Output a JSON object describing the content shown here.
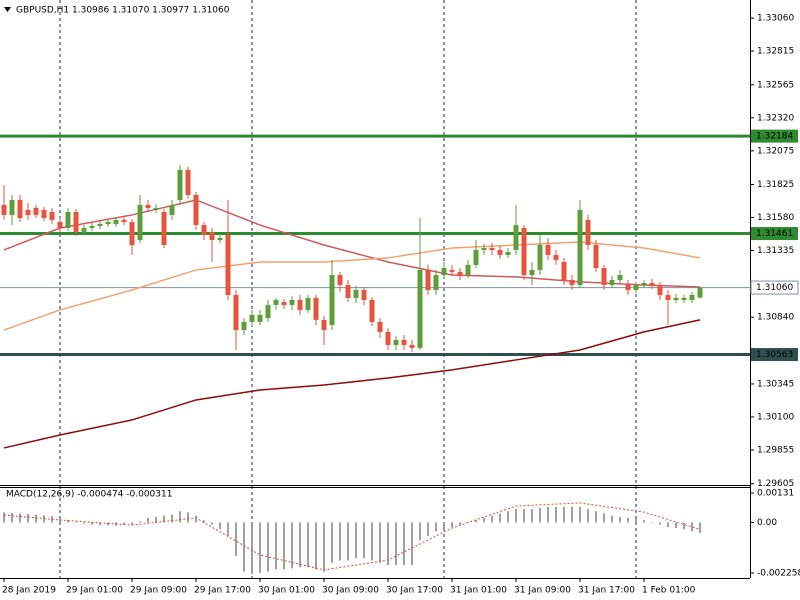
{
  "chart_data": [
    {
      "type": "candlestick",
      "title": "GBPUSD,H1 1.30986 1.31070 1.30977 1.31060",
      "categories": [
        "28 Jan 2019",
        null,
        null,
        null,
        null,
        null,
        null,
        null,
        "29 Jan 01:00",
        null,
        null,
        null,
        null,
        null,
        null,
        null,
        "29 Jan 09:00",
        null,
        null,
        null,
        null,
        null,
        null,
        null,
        "29 Jan 17:00",
        null,
        null,
        null,
        null,
        null,
        null,
        null,
        "30 Jan 01:00",
        null,
        null,
        null,
        null,
        null,
        null,
        null,
        "30 Jan 09:00",
        null,
        null,
        null,
        null,
        null,
        null,
        null,
        "30 Jan 17:00",
        null,
        null,
        null,
        null,
        null,
        null,
        null,
        "31 Jan 01:00",
        null,
        null,
        null,
        null,
        null,
        null,
        null,
        "31 Jan 09:00",
        null,
        null,
        null,
        null,
        null,
        null,
        null,
        "31 Jan 17:00",
        null,
        null,
        null,
        null,
        null,
        null,
        null,
        "1 Feb 01:00",
        null,
        null,
        null,
        null,
        null,
        null,
        null
      ],
      "open": [
        1.31673,
        1.31599,
        1.3171,
        1.31636,
        1.31651,
        1.31636,
        1.31621,
        1.31547,
        1.31502,
        1.31621,
        1.31473,
        1.31502,
        1.31517,
        1.31532,
        1.31532,
        1.31562,
        1.31547,
        1.31413,
        1.31673,
        1.31636,
        1.31621,
        1.31599,
        1.3171,
        1.31933,
        1.31747,
        1.31524,
        1.31473,
        1.31413,
        1.3145,
        1.31005,
        1.30745,
        1.30805,
        1.30805,
        1.30834,
        1.30931,
        1.30953,
        1.30931,
        1.30968,
        1.30894,
        1.30983,
        1.3082,
        1.30782,
        1.31153,
        1.31079,
        1.30983,
        1.31042,
        1.30968,
        1.30805,
        1.30731,
        1.30634,
        1.30671,
        1.30634,
        1.30612,
        1.31191,
        1.31042,
        1.31153,
        1.31191,
        1.31176,
        1.31153,
        1.31228,
        1.31339,
        1.31354,
        1.31339,
        1.31302,
        1.31339,
        1.31502,
        1.31153,
        1.31191,
        1.31376,
        1.31302,
        1.3125,
        1.31116,
        1.31079,
        1.31562,
        1.31376,
        1.31205,
        1.31079,
        1.31116,
        1.31079,
        1.31042,
        1.31079,
        1.31094,
        1.31079,
        1.31005,
        1.30968,
        1.30968,
        1.30968,
        1.30986
      ],
      "high": [
        1.31821,
        1.31747,
        1.31747,
        1.31688,
        1.31673,
        1.31658,
        1.31651,
        1.31576,
        1.31651,
        1.31643,
        1.31524,
        1.31539,
        1.31554,
        1.31569,
        1.31584,
        1.31591,
        1.31569,
        1.31747,
        1.3171,
        1.3168,
        1.31643,
        1.3171,
        1.3197,
        1.31955,
        1.31769,
        1.31547,
        1.31502,
        1.31458,
        1.3171,
        1.31042,
        1.30834,
        1.30894,
        1.30894,
        1.30968,
        1.30983,
        1.30975,
        1.30998,
        1.31005,
        1.31005,
        1.31005,
        1.30849,
        1.31265,
        1.31176,
        1.31116,
        1.31072,
        1.31064,
        1.3099,
        1.30834,
        1.3076,
        1.30701,
        1.30708,
        1.30671,
        1.31576,
        1.31228,
        1.31191,
        1.3125,
        1.31228,
        1.31205,
        1.31265,
        1.31413,
        1.31384,
        1.31391,
        1.31369,
        1.31354,
        1.31673,
        1.31524,
        1.3125,
        1.3145,
        1.31428,
        1.31339,
        1.3128,
        1.31153,
        1.3171,
        1.31599,
        1.31413,
        1.31228,
        1.31146,
        1.31191,
        1.31116,
        1.31102,
        1.31116,
        1.31124,
        1.31102,
        1.31042,
        1.31013,
        1.31005,
        1.31027,
        1.3107
      ],
      "low": [
        1.31562,
        1.31524,
        1.31547,
        1.31562,
        1.31576,
        1.31554,
        1.31532,
        1.31473,
        1.3148,
        1.31443,
        1.3145,
        1.3148,
        1.31495,
        1.3151,
        1.3151,
        1.31524,
        1.31302,
        1.31391,
        1.31621,
        1.31614,
        1.31354,
        1.31562,
        1.31673,
        1.31717,
        1.31487,
        1.31413,
        1.3125,
        1.31391,
        1.30968,
        1.30597,
        1.30708,
        1.30775,
        1.30782,
        1.30805,
        1.30894,
        1.30901,
        1.30894,
        1.30857,
        1.30872,
        1.30782,
        1.30634,
        1.30745,
        1.31027,
        1.30953,
        1.30946,
        1.30931,
        1.30775,
        1.30686,
        1.30597,
        1.30597,
        1.30597,
        1.30582,
        1.30597,
        1.31005,
        1.31005,
        1.31131,
        1.31146,
        1.31116,
        1.31131,
        1.31205,
        1.31302,
        1.31302,
        1.31272,
        1.3128,
        1.31302,
        1.31116,
        1.31079,
        1.31153,
        1.31265,
        1.31228,
        1.31079,
        1.31042,
        1.31057,
        1.31339,
        1.31176,
        1.31042,
        1.31057,
        1.31094,
        1.31005,
        1.3102,
        1.31057,
        1.3105,
        1.30968,
        1.30782,
        1.30946,
        1.30946,
        1.30946,
        1.30977
      ],
      "close": [
        1.31599,
        1.3171,
        1.31576,
        1.31599,
        1.31599,
        1.31576,
        1.31562,
        1.31502,
        1.31621,
        1.31473,
        1.31502,
        1.31517,
        1.31532,
        1.31547,
        1.31562,
        1.31547,
        1.31376,
        1.31673,
        1.31651,
        1.31651,
        1.31376,
        1.31673,
        1.31933,
        1.31747,
        1.31524,
        1.3145,
        1.31413,
        1.31428,
        1.31005,
        1.30745,
        1.30805,
        1.30857,
        1.30857,
        1.30931,
        1.30968,
        1.30931,
        1.30968,
        1.30894,
        1.30983,
        1.3082,
        1.30745,
        1.31153,
        1.31079,
        1.30983,
        1.31042,
        1.30968,
        1.30805,
        1.30731,
        1.30634,
        1.30671,
        1.30634,
        1.30612,
        1.31191,
        1.31042,
        1.31153,
        1.31205,
        1.31176,
        1.31153,
        1.31228,
        1.31339,
        1.31354,
        1.31339,
        1.31302,
        1.31324,
        1.31524,
        1.31153,
        1.31191,
        1.31376,
        1.31302,
        1.31265,
        1.31116,
        1.31079,
        1.31636,
        1.31376,
        1.31205,
        1.31079,
        1.31116,
        1.31153,
        1.31042,
        1.31079,
        1.31094,
        1.31079,
        1.31005,
        1.30968,
        1.30983,
        1.30983,
        1.31005,
        1.3106
      ],
      "up_color": "#5e9e3a",
      "down_color": "#e8533f",
      "series": [
        {
          "color": "#d05a5a",
          "x": [
            0,
            7,
            16,
            24,
            32,
            40,
            48,
            56,
            64,
            72,
            80,
            87
          ],
          "values": [
            1.31339,
            1.31502,
            1.31599,
            1.3171,
            1.31524,
            1.31376,
            1.3125,
            1.31153,
            1.31139,
            1.31102,
            1.31079,
            1.31064
          ]
        },
        {
          "color": "#f4a070",
          "x": [
            0,
            7,
            16,
            24,
            32,
            40,
            48,
            56,
            64,
            72,
            80,
            87
          ],
          "values": [
            1.30745,
            1.30894,
            1.31042,
            1.31191,
            1.3125,
            1.3125,
            1.3128,
            1.31354,
            1.31376,
            1.31398,
            1.31354,
            1.3128
          ]
        },
        {
          "color": "#8b0a0a",
          "x": [
            0,
            7,
            16,
            24,
            32,
            40,
            48,
            56,
            64,
            72,
            80,
            87
          ],
          "values": [
            1.2987,
            1.29966,
            1.30078,
            1.30226,
            1.303,
            1.30337,
            1.30389,
            1.30449,
            1.30523,
            1.30597,
            1.30731,
            1.3082
          ]
        }
      ],
      "levels": [
        {
          "value": 1.32184,
          "color": "#2e8b2e"
        },
        {
          "value": 1.31461,
          "color": "#2e8b2e"
        },
        {
          "value": 1.30563,
          "color": "#2f4f4f"
        }
      ],
      "last": {
        "value": 1.3106,
        "label": "1.31060",
        "color": "#7f8fa6"
      },
      "ylim": [
        1.29595,
        1.33194
      ],
      "yticks": [
        {
          "value": 1.3306,
          "label": "1.33060"
        },
        1.32815,
        1.32565,
        {
          "value": 1.3232,
          "label": "1.32320"
        },
        1.32075,
        1.31825,
        {
          "value": 1.3158,
          "label": "1.31580"
        },
        1.31335,
        {
          "value": 1.3084,
          "label": "1.30840"
        },
        1.30345,
        {
          "value": 1.301,
          "label": "1.30100"
        },
        1.29855,
        1.29605
      ]
    },
    {
      "type": "bar",
      "title": "MACD(12,26,9) -0.000474 -0.000311",
      "values": [
        0.00045,
        0.00042,
        0.0004,
        0.00038,
        0.00035,
        0.00032,
        0.00028,
        0.0002,
        0.0001,
        5e-05,
        -5e-05,
        -0.0001,
        -0.00012,
        -0.00014,
        -0.00015,
        -0.00012,
        -0.0001,
        5e-05,
        0.0002,
        0.00025,
        0.0003,
        0.00035,
        0.0005,
        0.00045,
        0.0003,
        0.0001,
        -0.0001,
        -0.0003,
        -0.0006,
        -0.0015,
        -0.0022,
        -0.0023,
        -0.00225,
        -0.0022,
        -0.0021,
        -0.0021,
        -0.00205,
        -0.002,
        -0.002,
        -0.0021,
        -0.0022,
        -0.0018,
        -0.0017,
        -0.0017,
        -0.0016,
        -0.0016,
        -0.0017,
        -0.0018,
        -0.0019,
        -0.0019,
        -0.0019,
        -0.0019,
        -0.0008,
        -0.0006,
        -0.0004,
        -0.0003,
        -0.0002,
        -0.0001,
        0,
        0.0001,
        0.0002,
        0.0003,
        0.0004,
        0.0005,
        0.0006,
        0.0006,
        0.0006,
        0.00065,
        0.0007,
        0.0007,
        0.0007,
        0.0007,
        0.0007,
        0.0006,
        0.0005,
        0.0004,
        0.0003,
        0.00025,
        0.0002,
        0.00015,
        0.0001,
        0,
        -0.0001,
        -0.0002,
        -0.00025,
        -0.0003,
        -0.0004,
        -0.000474
      ],
      "color": "#a0a0a0",
      "series": [
        {
          "color": "#e0483b",
          "x": [
            0,
            7,
            16,
            24,
            32,
            40,
            48,
            56,
            64,
            72,
            80,
            87
          ],
          "values": [
            0.00033,
            0.00011,
            -0.00012,
            0.0002,
            -0.00145,
            -0.00212,
            -0.00168,
            -0.00025,
            0.00073,
            0.00087,
            0.00046,
            -0.000311
          ]
        }
      ],
      "ylim": [
        -0.00248,
        0.00158
      ],
      "yticks": [
        0.00131,
        {
          "value": 0,
          "label": "0.00"
        },
        -0.002258
      ]
    }
  ]
}
